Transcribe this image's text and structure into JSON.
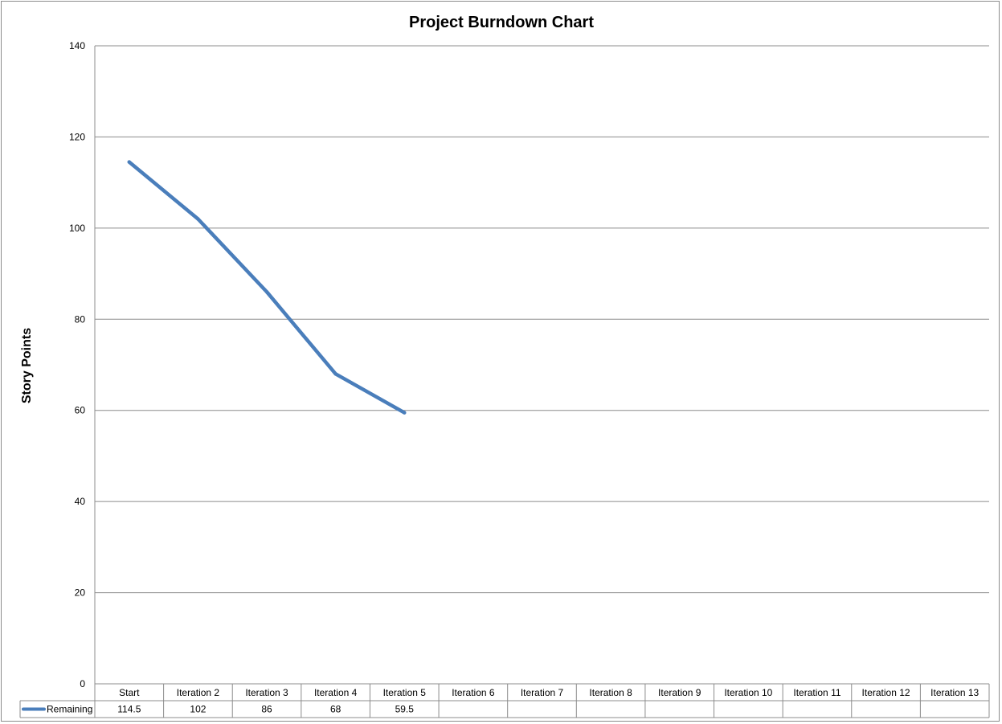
{
  "chart_data": {
    "type": "line",
    "title": "Project Burndown Chart",
    "xlabel": "",
    "ylabel": "Story Points",
    "ylim": [
      0,
      140
    ],
    "y_ticks": [
      0,
      20,
      40,
      60,
      80,
      100,
      120,
      140
    ],
    "grid": true,
    "legend": "data-table",
    "categories": [
      "Start",
      "Iteration 2",
      "Iteration 3",
      "Iteration 4",
      "Iteration 5",
      "Iteration 6",
      "Iteration 7",
      "Iteration 8",
      "Iteration 9",
      "Iteration 10",
      "Iteration 11",
      "Iteration 12",
      "Iteration 13"
    ],
    "series": [
      {
        "name": "Remaining",
        "color": "#4a7ebb",
        "values": [
          114.5,
          102,
          86,
          68,
          59.5,
          null,
          null,
          null,
          null,
          null,
          null,
          null,
          null
        ],
        "labels": [
          "114.5",
          "102",
          "86",
          "68",
          "59.5",
          "",
          "",
          "",
          "",
          "",
          "",
          "",
          ""
        ]
      }
    ]
  }
}
